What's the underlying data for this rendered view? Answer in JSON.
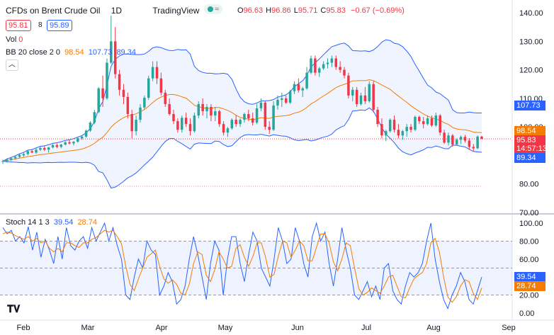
{
  "header": {
    "symbol": "CFDs on Brent Crude Oil",
    "interval": "1D",
    "source": "TradingView",
    "live_mark": "≈",
    "open_label": "O",
    "open": "96.63",
    "high_label": "H",
    "high": "96.86",
    "low_label": "L",
    "low": "95.71",
    "close_label": "C",
    "close": "95.83",
    "change": "−0.67 (−0.69%)",
    "bid": "95.81",
    "spread": "8",
    "ask": "95.89"
  },
  "indicators": {
    "vol_label": "Vol",
    "vol_value": "0",
    "bb_label": "BB 20 close 2 0",
    "bb_basis": "98.54",
    "bb_upper": "107.73",
    "bb_lower": "89.34",
    "stoch_label": "Stoch 14 1 3",
    "stoch_k": "39.54",
    "stoch_d": "28.74"
  },
  "badges": {
    "upper": "107.73",
    "basis": "98.54",
    "price": "95.83",
    "countdown": "14:57:13",
    "lower": "89.34",
    "k": "39.54",
    "d": "28.74"
  },
  "colors": {
    "up": "#26a69a",
    "down": "#f23645",
    "bb_band": "#2962ff",
    "bb_basis": "#f57c00",
    "stoch_k": "#2962ff",
    "stoch_d": "#f57c00"
  },
  "chart_data": {
    "type": "candlestick",
    "price_axis": {
      "ticks": [
        "140.00",
        "130.00",
        "120.00",
        "110.00",
        "100.00",
        "90.00",
        "80.00",
        "70.00"
      ],
      "range": [
        70,
        142
      ]
    },
    "stoch_axis": {
      "ticks": [
        "100.00",
        "80.00",
        "60.00",
        "40.00",
        "20.00",
        "0.00"
      ],
      "range": [
        0,
        100
      ],
      "bands": [
        80,
        50,
        20
      ]
    },
    "x_labels": [
      "Feb",
      "Mar",
      "Apr",
      "May",
      "Jun",
      "Jul",
      "Aug",
      "Sep"
    ],
    "candles": [
      [
        88,
        88.5,
        87,
        88
      ],
      [
        88,
        89,
        87.5,
        88.5
      ],
      [
        88.5,
        89.5,
        88,
        89
      ],
      [
        89,
        90,
        88.5,
        89.5
      ],
      [
        89.5,
        90.5,
        89,
        90.2
      ],
      [
        90,
        91,
        89.5,
        90.5
      ],
      [
        90.5,
        92,
        90,
        91.5
      ],
      [
        91.5,
        92,
        90.8,
        91
      ],
      [
        91,
        92.5,
        90.5,
        92
      ],
      [
        92,
        93,
        91.5,
        92.6
      ],
      [
        92.6,
        93.2,
        91.5,
        92
      ],
      [
        92,
        93,
        91,
        92.8
      ],
      [
        92.8,
        94,
        92.5,
        93.6
      ],
      [
        93.6,
        94.2,
        92.5,
        93
      ],
      [
        93,
        94,
        92.5,
        93.8
      ],
      [
        93.8,
        95,
        93.5,
        94.6
      ],
      [
        94.6,
        95.5,
        93.8,
        94.2
      ],
      [
        94.2,
        95,
        93.5,
        94.8
      ],
      [
        94.8,
        96.5,
        94.5,
        96
      ],
      [
        96,
        97,
        95.5,
        96.6
      ],
      [
        96.6,
        99,
        96.2,
        98.7
      ],
      [
        98.7,
        102,
        98.2,
        101.5
      ],
      [
        101.5,
        106,
        101,
        105.2
      ],
      [
        105.2,
        114,
        104.8,
        113.5
      ],
      [
        113.5,
        118,
        107,
        110
      ],
      [
        110,
        124,
        109.5,
        122.5
      ],
      [
        122.5,
        139,
        122,
        130
      ],
      [
        130,
        135,
        117,
        118.5
      ],
      [
        118.5,
        120,
        111,
        113
      ],
      [
        113,
        115,
        108,
        110.5
      ],
      [
        110.5,
        112,
        103,
        104.5
      ],
      [
        104.5,
        106,
        96,
        98.5
      ],
      [
        98.5,
        104,
        97,
        102.5
      ],
      [
        102.5,
        108,
        101.5,
        106.8
      ],
      [
        106.8,
        111,
        106,
        110.2
      ],
      [
        110.2,
        118,
        109.5,
        117
      ],
      [
        117,
        123,
        116,
        121
      ],
      [
        121,
        123,
        115,
        117
      ],
      [
        117,
        119,
        111,
        112
      ],
      [
        112,
        113,
        107,
        108
      ],
      [
        108,
        110,
        104,
        104.5
      ],
      [
        104.5,
        106,
        101,
        102
      ],
      [
        102,
        103,
        98,
        99
      ],
      [
        99,
        104,
        98,
        103.2
      ],
      [
        103.2,
        105,
        100,
        101
      ],
      [
        101,
        103,
        97,
        98.5
      ],
      [
        98.5,
        105,
        98,
        104
      ],
      [
        104,
        109,
        103,
        108
      ],
      [
        108,
        110,
        104,
        105.5
      ],
      [
        105.5,
        108,
        103,
        107
      ],
      [
        107,
        108,
        102,
        104
      ],
      [
        104,
        107,
        102,
        105.5
      ],
      [
        105.5,
        106,
        100,
        101
      ],
      [
        101,
        102,
        97,
        98
      ],
      [
        98,
        100,
        96.5,
        99.5
      ],
      [
        99.5,
        103,
        99,
        102.5
      ],
      [
        102.5,
        104,
        100,
        101
      ],
      [
        101,
        103,
        100,
        102.5
      ],
      [
        102.5,
        105,
        101.5,
        104.5
      ],
      [
        104.5,
        106,
        102,
        103
      ],
      [
        103,
        105,
        100.5,
        101.5
      ],
      [
        101.5,
        108,
        101,
        106.5
      ],
      [
        106.5,
        110,
        105.5,
        108.5
      ],
      [
        108.5,
        109,
        99,
        100
      ],
      [
        100,
        102,
        97.5,
        99
      ],
      [
        99,
        109,
        98.5,
        107.5
      ],
      [
        107.5,
        111,
        106,
        109.5
      ],
      [
        109.5,
        112,
        107,
        110
      ],
      [
        110,
        111,
        108,
        108.5
      ],
      [
        108.5,
        113,
        108,
        112.5
      ],
      [
        112.5,
        116,
        111.5,
        115
      ],
      [
        115,
        117,
        112,
        112.8
      ],
      [
        112.8,
        114,
        110.5,
        113.5
      ],
      [
        113.5,
        121,
        113,
        119
      ],
      [
        119,
        125,
        118.5,
        124
      ],
      [
        124,
        125,
        118,
        119
      ],
      [
        119,
        121,
        117.5,
        120.5
      ],
      [
        120.5,
        123,
        120,
        122
      ],
      [
        122,
        124,
        120.5,
        122.5
      ],
      [
        122.5,
        125,
        121,
        124
      ],
      [
        124,
        125,
        120,
        121
      ],
      [
        121,
        123,
        119,
        120
      ],
      [
        120,
        121,
        117,
        118
      ],
      [
        118,
        119,
        110,
        111
      ],
      [
        111,
        114,
        109,
        113
      ],
      [
        113,
        114,
        107,
        108
      ],
      [
        108,
        112,
        107.5,
        111
      ],
      [
        111,
        114,
        108,
        109
      ],
      [
        109,
        116,
        108.5,
        115
      ],
      [
        115,
        116,
        105,
        106
      ],
      [
        106,
        107,
        100,
        101
      ],
      [
        101,
        103,
        96,
        97
      ],
      [
        97,
        99,
        95,
        98.5
      ],
      [
        98.5,
        103,
        98,
        102.5
      ],
      [
        102.5,
        104,
        98,
        99
      ],
      [
        99,
        101,
        96,
        97
      ],
      [
        97,
        99,
        95.5,
        98.5
      ],
      [
        98.5,
        101,
        96.5,
        100
      ],
      [
        100,
        101,
        98,
        99
      ],
      [
        99,
        104,
        98.5,
        103.5
      ],
      [
        103.5,
        104,
        101,
        102
      ],
      [
        102,
        103.5,
        99.5,
        101
      ],
      [
        101,
        104,
        100.5,
        103
      ],
      [
        103,
        104,
        100,
        100.5
      ],
      [
        100.5,
        105,
        100,
        104
      ],
      [
        104,
        104.5,
        97,
        98
      ],
      [
        98,
        99,
        94,
        94.5
      ],
      [
        94.5,
        98,
        93.5,
        97
      ],
      [
        97,
        97.5,
        93,
        93.8
      ],
      [
        93.8,
        96,
        93.5,
        95.5
      ],
      [
        95.5,
        97,
        94,
        96.5
      ],
      [
        96.5,
        97.2,
        94.5,
        95.2
      ],
      [
        95.2,
        96,
        92,
        93
      ],
      [
        93,
        94,
        91.5,
        92.5
      ],
      [
        92.5,
        97,
        92.2,
        96.6
      ],
      [
        96.6,
        96.9,
        95.7,
        95.8
      ]
    ],
    "stoch_k": [
      95,
      88,
      92,
      80,
      85,
      78,
      96,
      70,
      90,
      62,
      82,
      70,
      55,
      85,
      60,
      95,
      75,
      70,
      80,
      85,
      72,
      95,
      80,
      90,
      100,
      80,
      95,
      75,
      60,
      20,
      15,
      40,
      60,
      50,
      80,
      70,
      65,
      20,
      30,
      45,
      35,
      10,
      15,
      30,
      60,
      85,
      65,
      40,
      15,
      55,
      80,
      70,
      20,
      60,
      85,
      85,
      55,
      35,
      65,
      90,
      80,
      50,
      40,
      30,
      60,
      95,
      80,
      55,
      60,
      95,
      80,
      55,
      40,
      85,
      100,
      80,
      90,
      55,
      30,
      60,
      95,
      70,
      50,
      20,
      15,
      25,
      35,
      18,
      30,
      15,
      50,
      55,
      25,
      15,
      10,
      30,
      45,
      40,
      45,
      55,
      80,
      100,
      60,
      35,
      15,
      5,
      20,
      30,
      45,
      35,
      15,
      10,
      25,
      40
    ],
    "stoch_d": [
      88,
      90,
      89,
      86,
      84,
      82,
      85,
      80,
      83,
      78,
      80,
      72,
      68,
      72,
      68,
      78,
      78,
      75,
      73,
      78,
      78,
      82,
      84,
      88,
      92,
      90,
      92,
      85,
      77,
      52,
      32,
      25,
      38,
      50,
      62,
      66,
      70,
      52,
      38,
      33,
      37,
      32,
      22,
      20,
      32,
      55,
      68,
      65,
      42,
      35,
      48,
      68,
      60,
      50,
      52,
      72,
      76,
      62,
      52,
      63,
      78,
      78,
      62,
      40,
      43,
      63,
      80,
      78,
      62,
      70,
      80,
      75,
      58,
      58,
      73,
      88,
      88,
      78,
      57,
      47,
      60,
      78,
      75,
      50,
      27,
      20,
      23,
      28,
      25,
      22,
      30,
      40,
      42,
      30,
      18,
      17,
      28,
      38,
      42,
      45,
      55,
      78,
      83,
      68,
      40,
      18,
      12,
      18,
      30,
      37,
      35,
      22,
      15,
      28
    ]
  }
}
